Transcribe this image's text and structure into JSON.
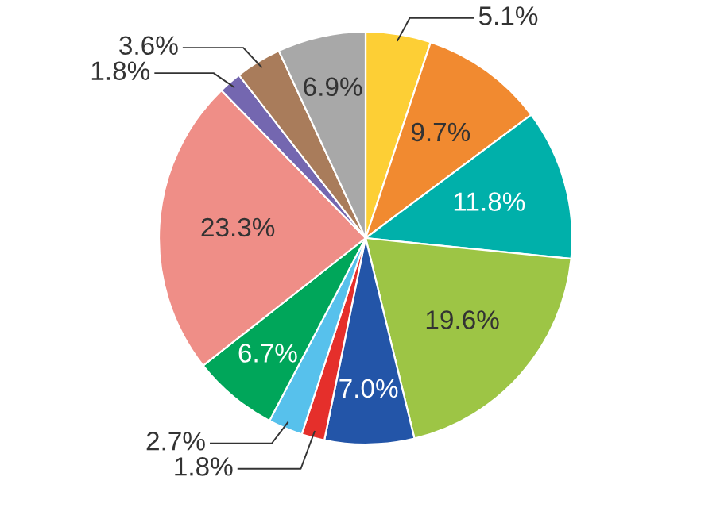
{
  "chart_data": {
    "type": "pie",
    "categories": [
      null,
      null,
      null,
      null,
      null,
      null,
      null,
      null,
      null,
      null,
      null,
      null
    ],
    "values": [
      5.1,
      9.7,
      11.8,
      19.6,
      7.0,
      1.8,
      2.7,
      6.7,
      23.3,
      1.8,
      3.6,
      6.9
    ],
    "value_labels": [
      "5.1%",
      "9.7%",
      "11.8%",
      "19.6%",
      "7.0%",
      "1.8%",
      "2.7%",
      "6.7%",
      "23.3%",
      "1.8%",
      "3.6%",
      "6.9%"
    ],
    "colors": [
      "#fdcf35",
      "#f18a30",
      "#00b0aa",
      "#9dc545",
      "#2355a8",
      "#e52f2b",
      "#57c1ec",
      "#00a65a",
      "#ef8e87",
      "#7467b0",
      "#a97c5b",
      "#a8a8a8"
    ]
  }
}
